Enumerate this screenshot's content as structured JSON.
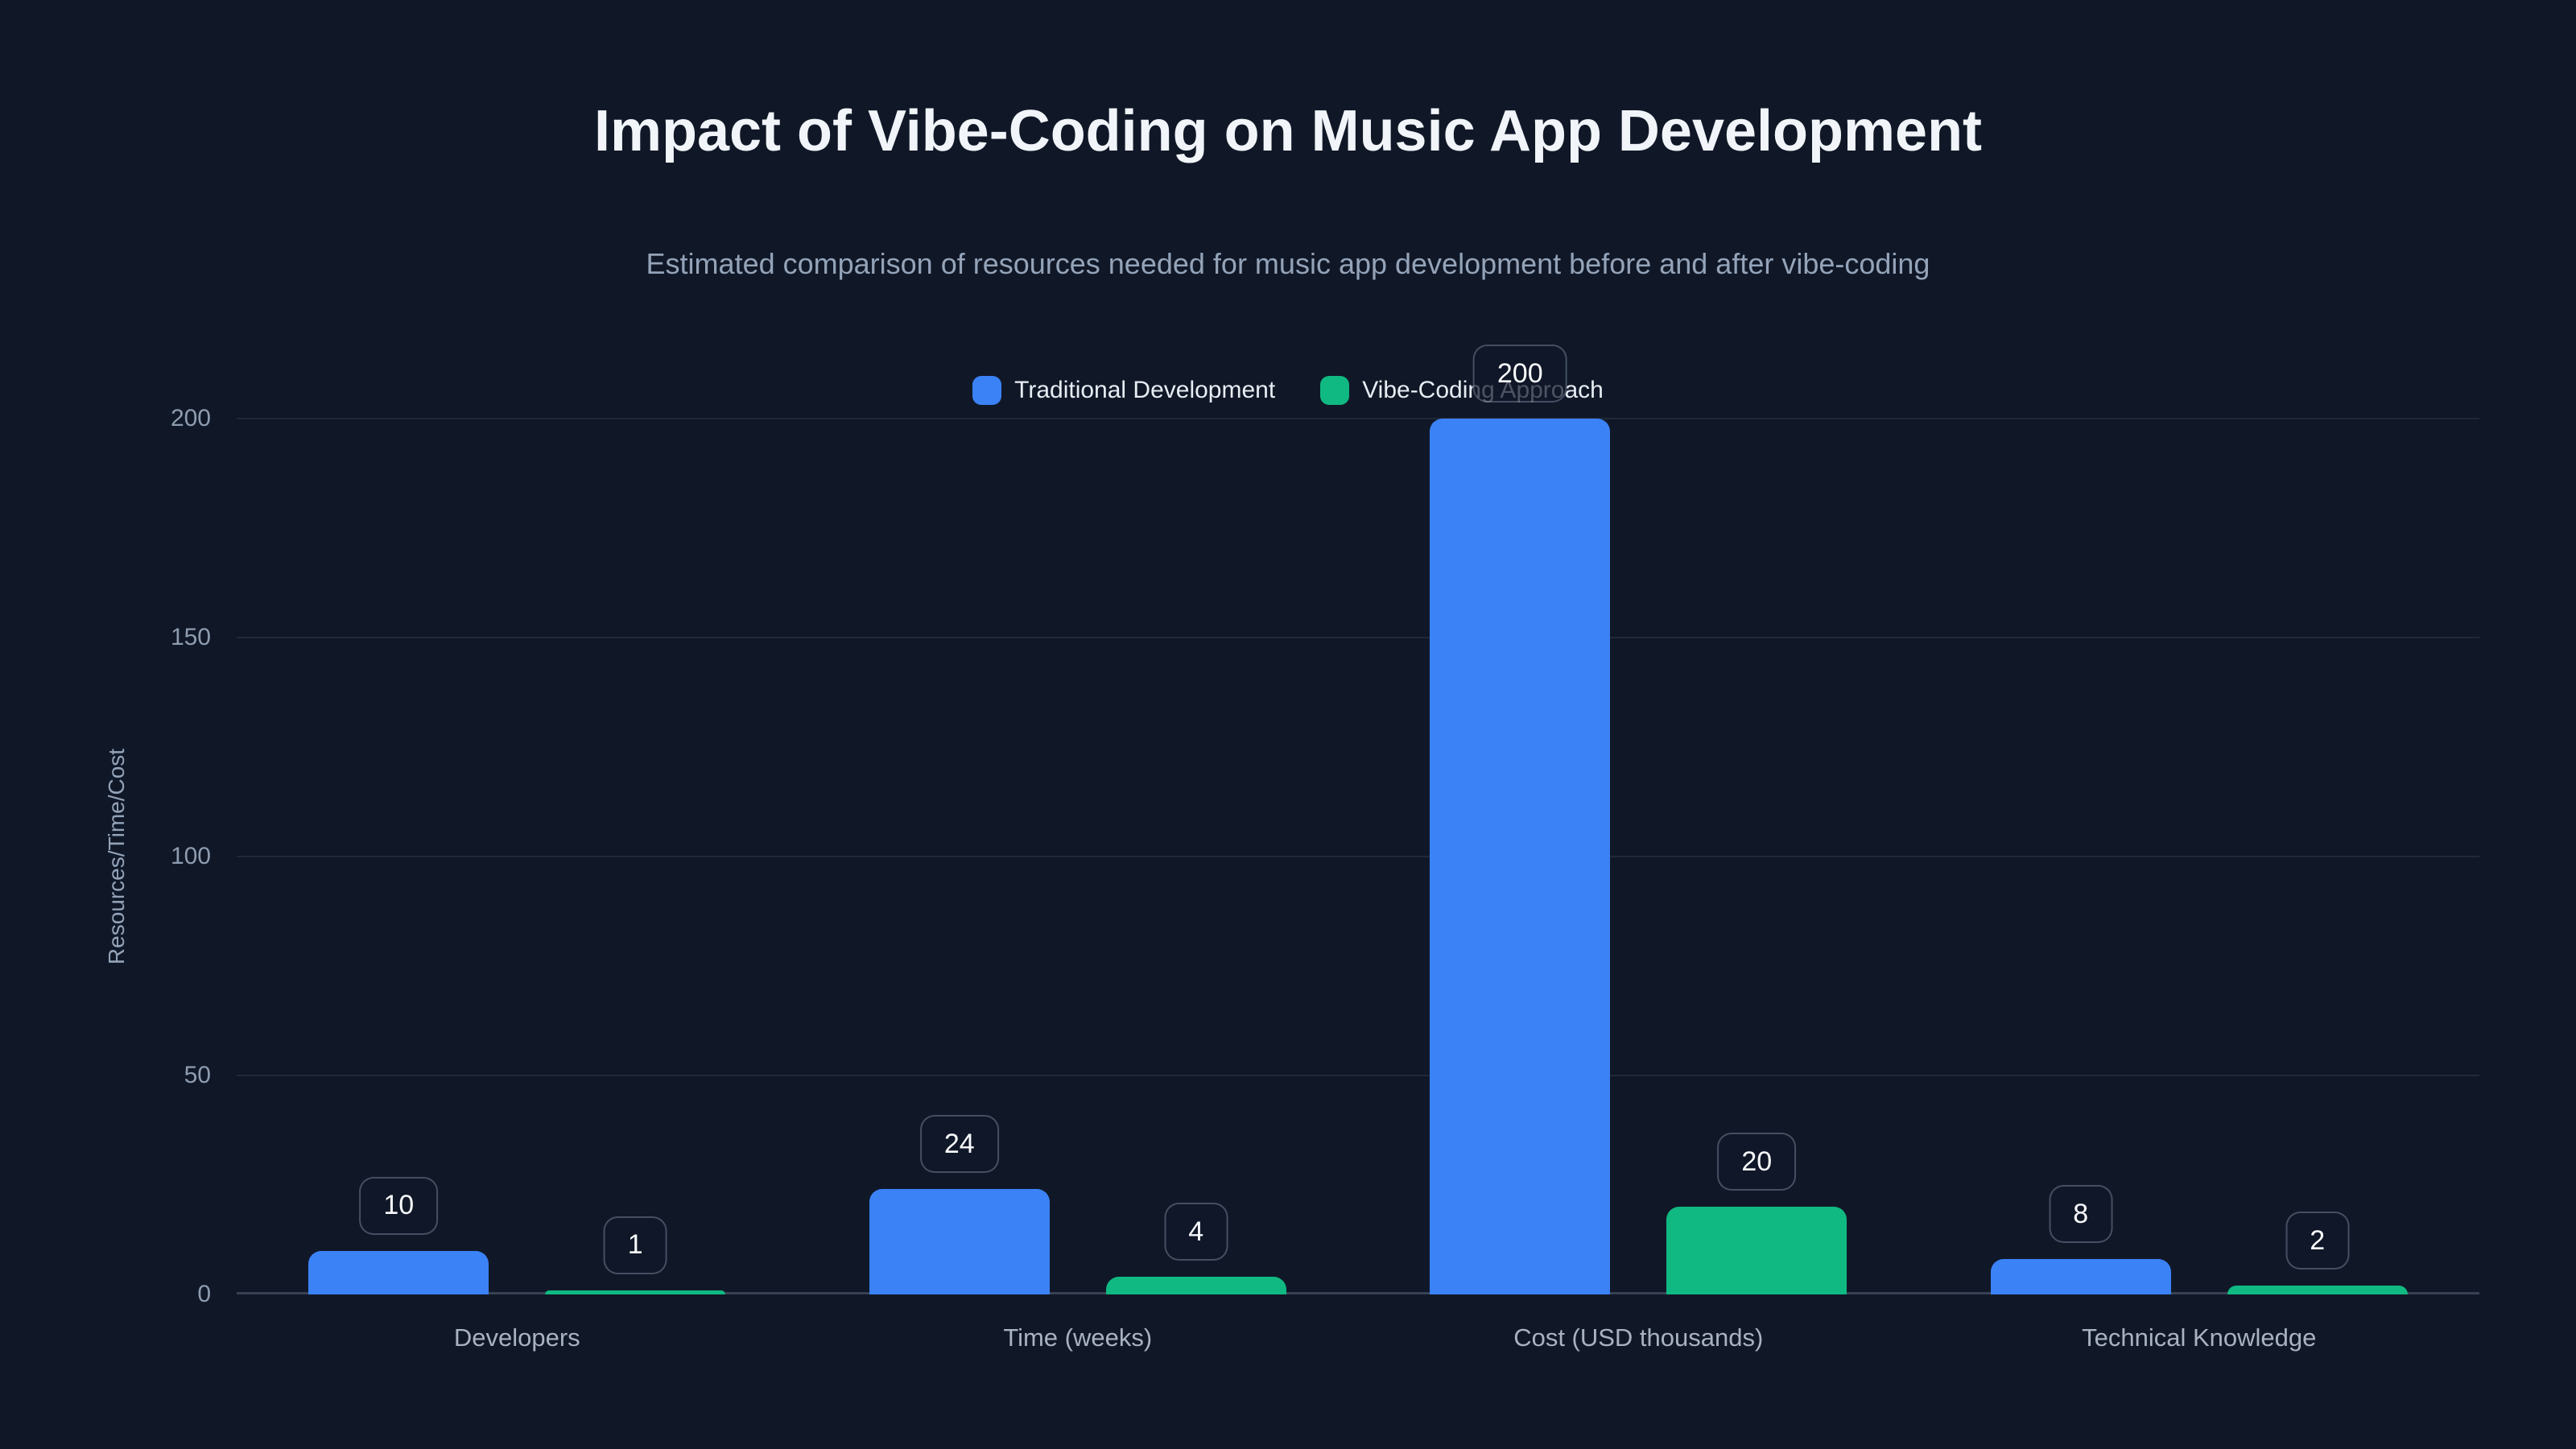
{
  "page": {
    "background": "#101828"
  },
  "chart_data": {
    "type": "bar",
    "title": "Impact of Vibe-Coding on Music App Development",
    "subtitle": "Estimated comparison of resources needed for music app development before and after vibe-coding",
    "categories": [
      "Developers",
      "Time (weeks)",
      "Cost (USD thousands)",
      "Technical Knowledge"
    ],
    "series": [
      {
        "name": "Traditional Development",
        "color": "#3b82f6",
        "values": [
          10,
          24,
          200,
          8
        ]
      },
      {
        "name": "Vibe-Coding Approach",
        "color": "#10b981",
        "values": [
          1,
          4,
          20,
          2
        ]
      }
    ],
    "data_labels": [
      "10",
      "1",
      "24",
      "4",
      "200",
      "20",
      "8",
      "2"
    ],
    "ylabel": "Resources/Time/Cost",
    "ylim": [
      0,
      200
    ],
    "yticks": [
      0,
      50,
      100,
      150,
      200
    ],
    "grid": "horizontal",
    "legend_position": "top"
  }
}
